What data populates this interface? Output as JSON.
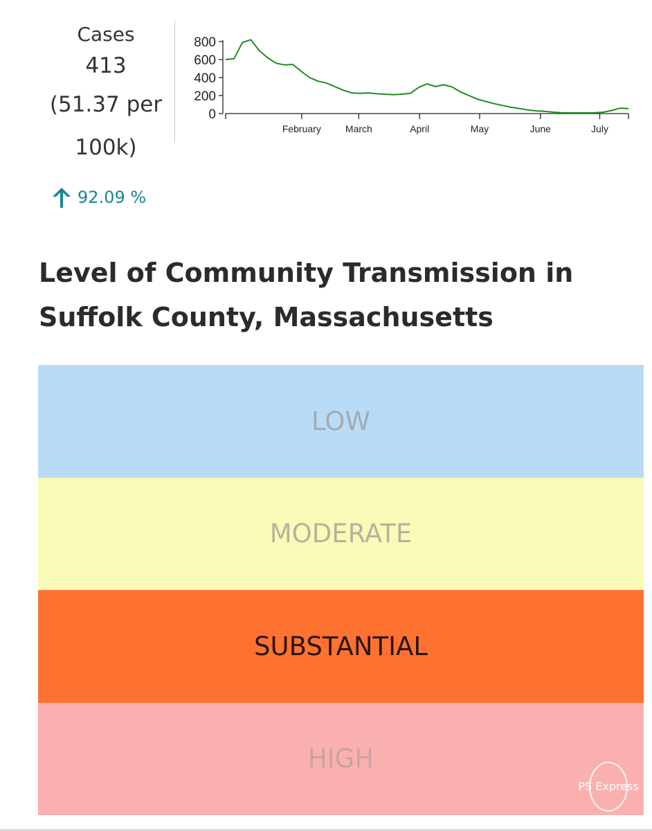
{
  "cases": {
    "label": "Cases",
    "value": "413",
    "rate_line1": "(51.37 per",
    "rate_line2": "100k)",
    "change_icon": "arrow-up-icon",
    "change_text": "92.09 %",
    "change_color": "#1a8494"
  },
  "chart_data": {
    "type": "line",
    "x_ticks": [
      "February",
      "March",
      "April",
      "May",
      "June",
      "July"
    ],
    "y_ticks": [
      "800",
      "600",
      "400",
      "200",
      "0"
    ],
    "ylim": [
      0,
      800
    ],
    "line_color": "#1e8c1e",
    "series": [
      {
        "values": [
          600,
          610,
          790,
          820,
          700,
          620,
          560,
          540,
          545,
          470,
          400,
          360,
          340,
          300,
          260,
          230,
          225,
          230,
          220,
          215,
          210,
          215,
          225,
          290,
          330,
          300,
          320,
          295,
          240,
          200,
          160,
          135,
          110,
          90,
          70,
          55,
          40,
          30,
          25,
          15,
          10,
          8,
          8,
          8,
          10,
          15,
          35,
          60,
          55
        ]
      }
    ]
  },
  "title": "Level of Community Transmission in Suffolk County, Massachusetts",
  "levels": [
    {
      "label": "LOW",
      "bg": "#b8dcf8",
      "text_color": "#a6aaae"
    },
    {
      "label": "MODERATE",
      "bg": "#fbfbb8",
      "text_color": "#b4b49c"
    },
    {
      "label": "SUBSTANTIAL",
      "bg": "#fd7231",
      "text_color": "#2a1510"
    },
    {
      "label": "HIGH",
      "bg": "#fbb0b0",
      "text_color": "#caa3a3"
    }
  ],
  "watermark": {
    "text": "PS Express"
  }
}
